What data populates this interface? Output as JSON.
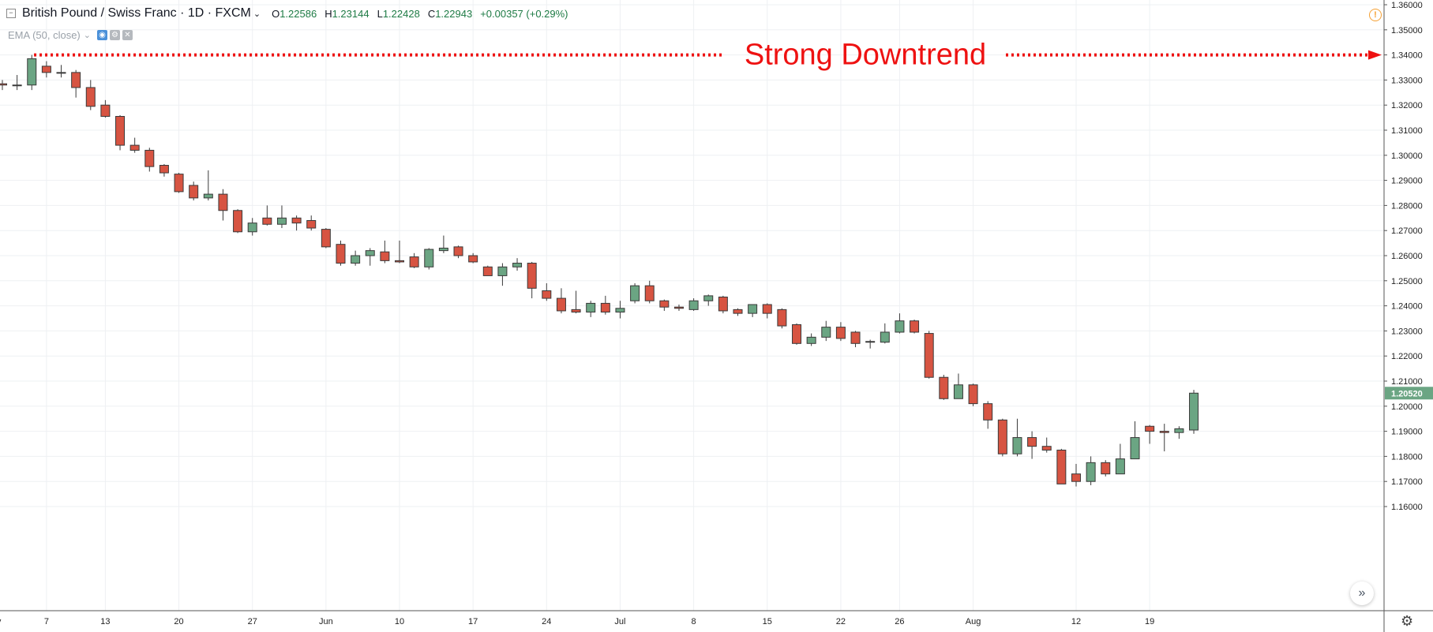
{
  "header": {
    "collapse_icon": "minus-box-icon",
    "symbol": "British Pound / Swiss Franc · 1D · FXCM",
    "dropdown_icon": "chevron-down-icon",
    "ohlc": {
      "o_label": "O",
      "o_value": "1.22586",
      "h_label": "H",
      "h_value": "1.23144",
      "l_label": "L",
      "l_value": "1.22428",
      "c_label": "C",
      "c_value": "1.22943",
      "change": "+0.00357 (+0.29%)"
    },
    "indicator": "EMA (50, close)",
    "indicator_buttons": [
      "eye-icon",
      "settings-icon",
      "close-icon"
    ],
    "warning_icon": "info-icon"
  },
  "nav": {
    "scroll_icon": "double-chevron-right-icon",
    "settings_icon": "gear-icon"
  },
  "colors": {
    "up": "#6ba583",
    "down": "#d75442",
    "border": "#3a3a3a",
    "grid": "#eef0f3",
    "annotation": "#ee1111"
  },
  "chart_data": {
    "type": "candlestick",
    "title": "British Pound / Swiss Franc · 1D · FXCM",
    "ylim": [
      1.155,
      1.36
    ],
    "y_ticks": [
      "1.36000",
      "1.35000",
      "1.34000",
      "1.33000",
      "1.32000",
      "1.31000",
      "1.30000",
      "1.29000",
      "1.28000",
      "1.27000",
      "1.26000",
      "1.25000",
      "1.24000",
      "1.23000",
      "1.22000",
      "1.21000",
      "1.20000",
      "1.19000",
      "1.18000",
      "1.17000",
      "1.16000"
    ],
    "x_labels": [
      {
        "label": "ay",
        "bar": -0.4
      },
      {
        "label": "7",
        "bar": 3
      },
      {
        "label": "13",
        "bar": 7
      },
      {
        "label": "20",
        "bar": 12
      },
      {
        "label": "27",
        "bar": 17
      },
      {
        "label": "Jun",
        "bar": 22
      },
      {
        "label": "10",
        "bar": 27
      },
      {
        "label": "17",
        "bar": 32
      },
      {
        "label": "24",
        "bar": 37
      },
      {
        "label": "Jul",
        "bar": 42
      },
      {
        "label": "8",
        "bar": 47
      },
      {
        "label": "15",
        "bar": 52
      },
      {
        "label": "22",
        "bar": 57
      },
      {
        "label": "26",
        "bar": 61
      },
      {
        "label": "Aug",
        "bar": 66
      },
      {
        "label": "12",
        "bar": 73
      },
      {
        "label": "19",
        "bar": 78
      }
    ],
    "last_price": "1.20520",
    "annotation": {
      "text": "Strong Downtrend",
      "from_bar": 1,
      "y": 1.34
    },
    "candles": [
      {
        "o": 1.3285,
        "h": 1.33,
        "l": 1.326,
        "c": 1.328
      },
      {
        "o": 1.328,
        "h": 1.332,
        "l": 1.326,
        "c": 1.328
      },
      {
        "o": 1.328,
        "h": 1.34,
        "l": 1.326,
        "c": 1.3385
      },
      {
        "o": 1.3355,
        "h": 1.3375,
        "l": 1.331,
        "c": 1.333
      },
      {
        "o": 1.333,
        "h": 1.336,
        "l": 1.331,
        "c": 1.333
      },
      {
        "o": 1.333,
        "h": 1.334,
        "l": 1.323,
        "c": 1.327
      },
      {
        "o": 1.327,
        "h": 1.33,
        "l": 1.318,
        "c": 1.3195
      },
      {
        "o": 1.32,
        "h": 1.322,
        "l": 1.315,
        "c": 1.3155
      },
      {
        "o": 1.3155,
        "h": 1.316,
        "l": 1.302,
        "c": 1.304
      },
      {
        "o": 1.304,
        "h": 1.307,
        "l": 1.301,
        "c": 1.302
      },
      {
        "o": 1.302,
        "h": 1.303,
        "l": 1.2935,
        "c": 1.2955
      },
      {
        "o": 1.296,
        "h": 1.2965,
        "l": 1.2915,
        "c": 1.293
      },
      {
        "o": 1.2925,
        "h": 1.293,
        "l": 1.285,
        "c": 1.2855
      },
      {
        "o": 1.288,
        "h": 1.2895,
        "l": 1.282,
        "c": 1.283
      },
      {
        "o": 1.283,
        "h": 1.294,
        "l": 1.282,
        "c": 1.2845
      },
      {
        "o": 1.2845,
        "h": 1.2865,
        "l": 1.274,
        "c": 1.278
      },
      {
        "o": 1.278,
        "h": 1.2785,
        "l": 1.269,
        "c": 1.2695
      },
      {
        "o": 1.2695,
        "h": 1.275,
        "l": 1.268,
        "c": 1.273
      },
      {
        "o": 1.275,
        "h": 1.28,
        "l": 1.272,
        "c": 1.2725
      },
      {
        "o": 1.2725,
        "h": 1.28,
        "l": 1.271,
        "c": 1.275
      },
      {
        "o": 1.275,
        "h": 1.276,
        "l": 1.27,
        "c": 1.273
      },
      {
        "o": 1.274,
        "h": 1.276,
        "l": 1.27,
        "c": 1.271
      },
      {
        "o": 1.2705,
        "h": 1.271,
        "l": 1.263,
        "c": 1.2635
      },
      {
        "o": 1.2645,
        "h": 1.266,
        "l": 1.256,
        "c": 1.257
      },
      {
        "o": 1.257,
        "h": 1.262,
        "l": 1.256,
        "c": 1.26
      },
      {
        "o": 1.26,
        "h": 1.263,
        "l": 1.256,
        "c": 1.262
      },
      {
        "o": 1.2615,
        "h": 1.266,
        "l": 1.257,
        "c": 1.258
      },
      {
        "o": 1.258,
        "h": 1.266,
        "l": 1.257,
        "c": 1.2575
      },
      {
        "o": 1.2595,
        "h": 1.261,
        "l": 1.255,
        "c": 1.2555
      },
      {
        "o": 1.2555,
        "h": 1.263,
        "l": 1.2545,
        "c": 1.2625
      },
      {
        "o": 1.262,
        "h": 1.268,
        "l": 1.261,
        "c": 1.263
      },
      {
        "o": 1.2635,
        "h": 1.264,
        "l": 1.259,
        "c": 1.26
      },
      {
        "o": 1.26,
        "h": 1.261,
        "l": 1.257,
        "c": 1.2575
      },
      {
        "o": 1.2555,
        "h": 1.256,
        "l": 1.252,
        "c": 1.252
      },
      {
        "o": 1.252,
        "h": 1.257,
        "l": 1.248,
        "c": 1.2555
      },
      {
        "o": 1.2555,
        "h": 1.259,
        "l": 1.254,
        "c": 1.257
      },
      {
        "o": 1.257,
        "h": 1.2575,
        "l": 1.243,
        "c": 1.247
      },
      {
        "o": 1.246,
        "h": 1.249,
        "l": 1.242,
        "c": 1.243
      },
      {
        "o": 1.243,
        "h": 1.247,
        "l": 1.237,
        "c": 1.238
      },
      {
        "o": 1.2385,
        "h": 1.246,
        "l": 1.237,
        "c": 1.2375
      },
      {
        "o": 1.2375,
        "h": 1.242,
        "l": 1.2355,
        "c": 1.241
      },
      {
        "o": 1.241,
        "h": 1.244,
        "l": 1.2365,
        "c": 1.2375
      },
      {
        "o": 1.2375,
        "h": 1.242,
        "l": 1.235,
        "c": 1.239
      },
      {
        "o": 1.242,
        "h": 1.249,
        "l": 1.241,
        "c": 1.248
      },
      {
        "o": 1.248,
        "h": 1.25,
        "l": 1.241,
        "c": 1.242
      },
      {
        "o": 1.242,
        "h": 1.2425,
        "l": 1.238,
        "c": 1.2395
      },
      {
        "o": 1.2395,
        "h": 1.2405,
        "l": 1.238,
        "c": 1.239
      },
      {
        "o": 1.2385,
        "h": 1.243,
        "l": 1.238,
        "c": 1.242
      },
      {
        "o": 1.242,
        "h": 1.2445,
        "l": 1.24,
        "c": 1.244
      },
      {
        "o": 1.2435,
        "h": 1.244,
        "l": 1.237,
        "c": 1.238
      },
      {
        "o": 1.2385,
        "h": 1.239,
        "l": 1.236,
        "c": 1.237
      },
      {
        "o": 1.237,
        "h": 1.2405,
        "l": 1.2355,
        "c": 1.2405
      },
      {
        "o": 1.2405,
        "h": 1.241,
        "l": 1.235,
        "c": 1.237
      },
      {
        "o": 1.2385,
        "h": 1.239,
        "l": 1.231,
        "c": 1.232
      },
      {
        "o": 1.2325,
        "h": 1.233,
        "l": 1.2245,
        "c": 1.225
      },
      {
        "o": 1.225,
        "h": 1.229,
        "l": 1.224,
        "c": 1.2275
      },
      {
        "o": 1.2275,
        "h": 1.234,
        "l": 1.226,
        "c": 1.2315
      },
      {
        "o": 1.2315,
        "h": 1.2335,
        "l": 1.226,
        "c": 1.227
      },
      {
        "o": 1.2295,
        "h": 1.23,
        "l": 1.2235,
        "c": 1.225
      },
      {
        "o": 1.2255,
        "h": 1.2265,
        "l": 1.223,
        "c": 1.2258
      },
      {
        "o": 1.2255,
        "h": 1.233,
        "l": 1.225,
        "c": 1.2295
      },
      {
        "o": 1.2295,
        "h": 1.237,
        "l": 1.229,
        "c": 1.234
      },
      {
        "o": 1.234,
        "h": 1.2345,
        "l": 1.229,
        "c": 1.2295
      },
      {
        "o": 1.229,
        "h": 1.23,
        "l": 1.211,
        "c": 1.2115
      },
      {
        "o": 1.2115,
        "h": 1.2125,
        "l": 1.2025,
        "c": 1.203
      },
      {
        "o": 1.203,
        "h": 1.213,
        "l": 1.203,
        "c": 1.2085
      },
      {
        "o": 1.2085,
        "h": 1.209,
        "l": 1.2,
        "c": 1.201
      },
      {
        "o": 1.201,
        "h": 1.202,
        "l": 1.191,
        "c": 1.1945
      },
      {
        "o": 1.1945,
        "h": 1.195,
        "l": 1.18,
        "c": 1.181
      },
      {
        "o": 1.181,
        "h": 1.195,
        "l": 1.18,
        "c": 1.1875
      },
      {
        "o": 1.1875,
        "h": 1.19,
        "l": 1.179,
        "c": 1.184
      },
      {
        "o": 1.184,
        "h": 1.1875,
        "l": 1.1815,
        "c": 1.1825
      },
      {
        "o": 1.1825,
        "h": 1.183,
        "l": 1.169,
        "c": 1.169
      },
      {
        "o": 1.173,
        "h": 1.177,
        "l": 1.168,
        "c": 1.17
      },
      {
        "o": 1.17,
        "h": 1.18,
        "l": 1.1685,
        "c": 1.1775
      },
      {
        "o": 1.1775,
        "h": 1.1785,
        "l": 1.172,
        "c": 1.173
      },
      {
        "o": 1.173,
        "h": 1.185,
        "l": 1.173,
        "c": 1.179
      },
      {
        "o": 1.179,
        "h": 1.194,
        "l": 1.179,
        "c": 1.1875
      },
      {
        "o": 1.192,
        "h": 1.1925,
        "l": 1.185,
        "c": 1.19
      },
      {
        "o": 1.19,
        "h": 1.193,
        "l": 1.182,
        "c": 1.1895
      },
      {
        "o": 1.1895,
        "h": 1.192,
        "l": 1.187,
        "c": 1.191
      },
      {
        "o": 1.1905,
        "h": 1.2065,
        "l": 1.189,
        "c": 1.2052
      }
    ]
  }
}
